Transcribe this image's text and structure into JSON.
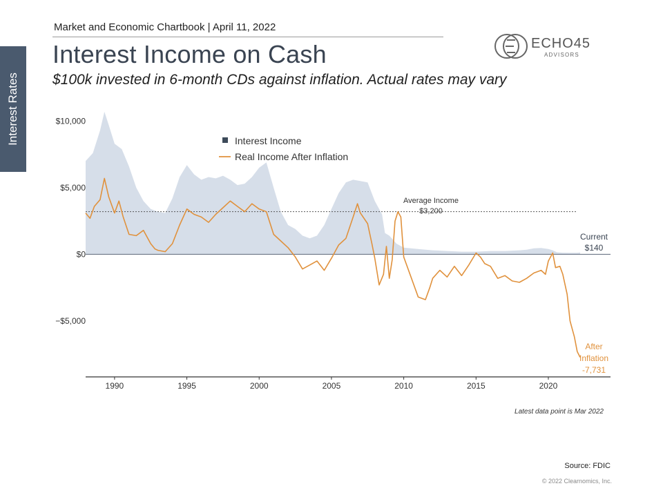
{
  "header": {
    "chartbook": "Market and Economic Chartbook | April 11, 2022",
    "title": "Interest Income on Cash",
    "subtitle": "$100k invested in 6-month CDs against inflation. Actual rates may vary",
    "side_tab": "Interest Rates"
  },
  "logo": {
    "name": "ECHO45",
    "sub": "ADVISORS"
  },
  "colors": {
    "title": "#3a4452",
    "side_tab": "#4a5a6e",
    "area": "#d6dee9",
    "area_legend": "#3d4a5a",
    "line": "#e0913c",
    "axis": "#6b7585"
  },
  "chart_data": {
    "type": "area",
    "title": "Interest Income on Cash",
    "xlabel": "",
    "ylabel": "",
    "xlim": [
      1988.0,
      2024.3
    ],
    "ylim": [
      -9200,
      10800
    ],
    "x_ticks": [
      1990,
      1995,
      2000,
      2005,
      2010,
      2015,
      2020
    ],
    "y_ticks": [
      {
        "value": 10000,
        "label": "$10,000"
      },
      {
        "value": 5000,
        "label": "$5,000"
      },
      {
        "value": 0,
        "label": "$0"
      },
      {
        "value": -5000,
        "label": "−$5,000"
      }
    ],
    "legend": [
      "Interest Income",
      "Real Income After Inflation"
    ],
    "legend_position": "top-left",
    "series": [
      {
        "name": "Interest Income",
        "kind": "area",
        "x": [
          1988.0,
          1988.5,
          1989.0,
          1989.3,
          1989.6,
          1990.0,
          1990.5,
          1991.0,
          1991.5,
          1992.0,
          1992.5,
          1993.0,
          1993.5,
          1994.0,
          1994.5,
          1995.0,
          1995.5,
          1996.0,
          1996.5,
          1997.0,
          1997.5,
          1998.0,
          1998.5,
          1999.0,
          1999.5,
          2000.0,
          2000.5,
          2001.0,
          2001.5,
          2002.0,
          2002.5,
          2003.0,
          2003.5,
          2004.0,
          2004.5,
          2005.0,
          2005.5,
          2006.0,
          2006.5,
          2007.0,
          2007.5,
          2008.0,
          2008.3,
          2008.5,
          2008.7,
          2009.0,
          2009.5,
          2010.0,
          2011.0,
          2012.0,
          2013.0,
          2014.0,
          2015.0,
          2016.0,
          2017.0,
          2018.0,
          2018.5,
          2019.0,
          2019.5,
          2020.0,
          2020.3,
          2020.6,
          2021.0,
          2021.5,
          2022.0,
          2022.2
        ],
        "values": [
          7000,
          7600,
          9300,
          10700,
          9700,
          8300,
          7900,
          6600,
          5000,
          4000,
          3400,
          3200,
          3100,
          4200,
          5800,
          6700,
          6000,
          5600,
          5800,
          5700,
          5900,
          5600,
          5200,
          5300,
          5800,
          6500,
          6900,
          5000,
          3200,
          2200,
          1900,
          1400,
          1200,
          1400,
          2200,
          3400,
          4600,
          5400,
          5600,
          5500,
          5400,
          4000,
          3400,
          3000,
          1600,
          1400,
          800,
          500,
          400,
          300,
          250,
          200,
          200,
          250,
          250,
          300,
          350,
          450,
          480,
          400,
          300,
          150,
          120,
          110,
          110,
          140
        ]
      },
      {
        "name": "Real Income After Inflation",
        "kind": "line",
        "x": [
          1988.0,
          1988.3,
          1988.6,
          1989.0,
          1989.3,
          1989.6,
          1990.0,
          1990.3,
          1990.6,
          1991.0,
          1991.5,
          1992.0,
          1992.5,
          1992.8,
          1993.0,
          1993.5,
          1994.0,
          1994.5,
          1995.0,
          1995.5,
          1996.0,
          1996.5,
          1997.0,
          1997.5,
          1998.0,
          1998.5,
          1999.0,
          1999.5,
          2000.0,
          2000.5,
          2001.0,
          2001.5,
          2002.0,
          2002.5,
          2003.0,
          2003.5,
          2004.0,
          2004.5,
          2005.0,
          2005.5,
          2006.0,
          2006.5,
          2006.8,
          2007.0,
          2007.5,
          2007.8,
          2008.0,
          2008.3,
          2008.6,
          2008.8,
          2009.0,
          2009.2,
          2009.4,
          2009.6,
          2009.8,
          2010.0,
          2010.5,
          2011.0,
          2011.5,
          2011.8,
          2012.0,
          2012.5,
          2013.0,
          2013.5,
          2014.0,
          2014.5,
          2015.0,
          2015.3,
          2015.6,
          2016.0,
          2016.5,
          2017.0,
          2017.5,
          2018.0,
          2018.5,
          2019.0,
          2019.5,
          2019.8,
          2020.0,
          2020.3,
          2020.5,
          2020.8,
          2021.0,
          2021.3,
          2021.5,
          2021.8,
          2022.0,
          2022.2
        ],
        "values": [
          3100,
          2700,
          3600,
          4100,
          5700,
          4300,
          3100,
          4000,
          2800,
          1500,
          1400,
          1800,
          800,
          400,
          300,
          200,
          800,
          2200,
          3400,
          3000,
          2800,
          2400,
          3000,
          3500,
          4000,
          3600,
          3200,
          3800,
          3400,
          3200,
          1500,
          1000,
          500,
          -200,
          -1100,
          -800,
          -500,
          -1200,
          -300,
          700,
          1200,
          2800,
          3800,
          3100,
          2300,
          800,
          -300,
          -2300,
          -1500,
          600,
          -1800,
          -400,
          2500,
          3200,
          2800,
          -200,
          -1700,
          -3200,
          -3400,
          -2500,
          -1800,
          -1200,
          -1700,
          -900,
          -1600,
          -800,
          100,
          -200,
          -700,
          -900,
          -1800,
          -1600,
          -2000,
          -2100,
          -1800,
          -1400,
          -1200,
          -1500,
          -500,
          100,
          -1000,
          -900,
          -1500,
          -3000,
          -5000,
          -6200,
          -7300,
          -7731
        ]
      }
    ],
    "annotations": [
      {
        "type": "hline",
        "value": 3200,
        "text": "Average Income",
        "value_text": "$3,200"
      },
      {
        "type": "label",
        "x": 2022.2,
        "value": 140,
        "text": "Current",
        "value_text": "$140"
      },
      {
        "type": "label",
        "x": 2022.2,
        "value": -7731,
        "text": "After Inflation",
        "value_text": "-7,731"
      }
    ]
  },
  "notes": {
    "latest": "Latest data point is Mar 2022",
    "source": "Source: FDIC",
    "copyright": "© 2022 Clearnomics, Inc."
  }
}
